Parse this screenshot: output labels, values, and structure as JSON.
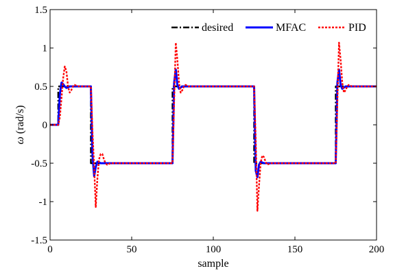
{
  "chart_data": {
    "type": "line",
    "xlabel": "sample",
    "ylabel_symbol": "ω",
    "ylabel_unit": " (rad/s)",
    "xlim": [
      0,
      200
    ],
    "ylim": [
      -1.5,
      1.5
    ],
    "xticks": [
      0,
      50,
      100,
      150,
      200
    ],
    "yticks": [
      -1.5,
      -1,
      -0.5,
      0,
      0.5,
      1,
      1.5
    ],
    "xtick_labels": [
      "0",
      "50",
      "100",
      "150",
      "200"
    ],
    "ytick_labels": [
      "-1.5",
      "-1",
      "-0.5",
      "0",
      "0.5",
      "1",
      "1.5"
    ],
    "grid": false,
    "legend_position": "top-right",
    "series": [
      {
        "name": "desired",
        "color": "#000000",
        "style": "dash-dot",
        "x": [
          0,
          5,
          5,
          25,
          25,
          75,
          75,
          125,
          125,
          175,
          175,
          200
        ],
        "y": [
          0,
          0,
          0.5,
          0.5,
          -0.5,
          -0.5,
          0.5,
          0.5,
          -0.5,
          -0.5,
          0.5,
          0.5
        ]
      },
      {
        "name": "MFAC",
        "color": "#0000ff",
        "style": "solid",
        "x": [
          0,
          5,
          6,
          7,
          8,
          9,
          10,
          12,
          25,
          26,
          27,
          28,
          29,
          31,
          75,
          76,
          77,
          78,
          79,
          81,
          125,
          126,
          127,
          128,
          129,
          131,
          175,
          176,
          177,
          178,
          179,
          181,
          200
        ],
        "y": [
          0,
          0,
          0.4,
          0.55,
          0.53,
          0.5,
          0.48,
          0.5,
          0.5,
          -0.4,
          -0.67,
          -0.55,
          -0.48,
          -0.5,
          -0.5,
          0.55,
          0.72,
          0.52,
          0.47,
          0.5,
          0.5,
          -0.6,
          -0.68,
          -0.52,
          -0.48,
          -0.5,
          -0.5,
          0.55,
          0.72,
          0.52,
          0.47,
          0.5,
          0.5
        ]
      },
      {
        "name": "PID",
        "color": "#ff0000",
        "style": "dotted",
        "x": [
          0,
          5,
          6,
          7,
          8,
          9,
          10,
          11,
          12,
          13,
          14,
          15,
          16,
          18,
          20,
          25,
          26,
          27,
          28,
          29,
          30,
          31,
          32,
          33,
          34,
          35,
          37,
          40,
          75,
          76,
          77,
          78,
          79,
          80,
          81,
          82,
          83,
          85,
          125,
          126,
          127,
          128,
          129,
          130,
          131,
          132,
          133,
          135,
          175,
          176,
          177,
          178,
          179,
          180,
          181,
          182,
          183,
          185,
          200
        ],
        "y": [
          0,
          0,
          0.1,
          0.35,
          0.6,
          0.76,
          0.7,
          0.5,
          0.42,
          0.45,
          0.5,
          0.52,
          0.51,
          0.5,
          0.5,
          0.5,
          -0.1,
          -0.55,
          -1.07,
          -0.7,
          -0.45,
          -0.38,
          -0.38,
          -0.45,
          -0.5,
          -0.52,
          -0.5,
          -0.5,
          -0.5,
          0.3,
          1.07,
          0.85,
          0.55,
          0.42,
          0.45,
          0.5,
          0.52,
          0.5,
          0.5,
          -0.2,
          -1.12,
          -0.8,
          -0.5,
          -0.4,
          -0.42,
          -0.48,
          -0.52,
          -0.5,
          -0.5,
          0.3,
          1.07,
          0.85,
          0.55,
          0.42,
          0.45,
          0.5,
          0.52,
          0.5,
          0.5
        ]
      }
    ]
  }
}
